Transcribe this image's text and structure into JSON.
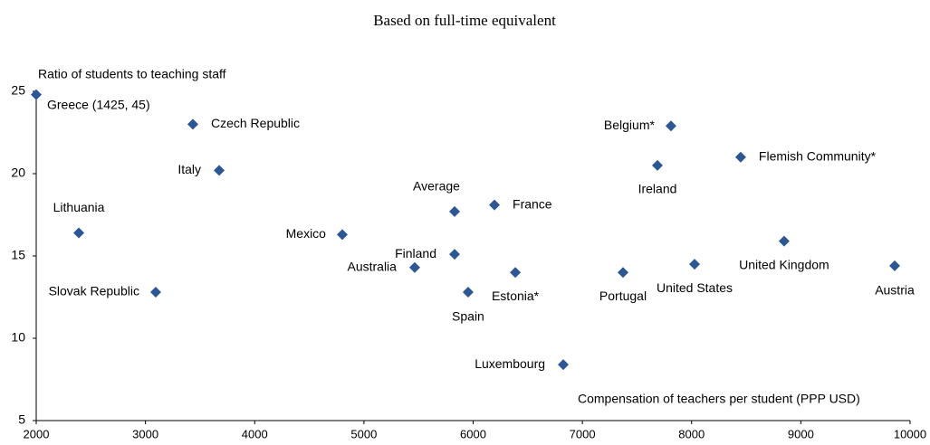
{
  "chart_data": {
    "type": "scatter",
    "title": "Based on full-time equivalent",
    "y_label": "Ratio of students to teaching staff",
    "x_label": "Compensation of teachers per student (PPP USD)",
    "color": "#2b5797",
    "point_labels": [
      "Greece (1425, 45)",
      "Czech Republic",
      "Italy",
      "Lithuania",
      "Slovak Republic",
      "Mexico",
      "Australia",
      "Finland",
      "Average",
      "France",
      "Spain",
      "Estonia*",
      "Luxembourg",
      "Portugal",
      "United States",
      "Ireland",
      "Belgium*",
      "Flemish Community*",
      "United Kingdom",
      "Austria"
    ],
    "x": [
      2000,
      3434,
      3675,
      2390,
      3094,
      4802,
      5465,
      5830,
      5830,
      6195,
      5954,
      6386,
      6825,
      7372,
      8027,
      7687,
      7811,
      8449,
      8847,
      9859
    ],
    "y": [
      24.8,
      23.0,
      20.2,
      16.4,
      12.8,
      16.3,
      14.3,
      15.1,
      17.7,
      18.1,
      12.8,
      14.0,
      8.4,
      14.0,
      14.5,
      20.5,
      22.9,
      21.0,
      15.9,
      14.4
    ],
    "xlim": [
      2000,
      10000
    ],
    "xticks": [
      2000,
      3000,
      4000,
      5000,
      6000,
      7000,
      8000,
      9000,
      10000
    ],
    "ylim": [
      5,
      25
    ],
    "yticks": [
      5,
      10,
      15,
      20,
      25
    ],
    "grid": false
  }
}
